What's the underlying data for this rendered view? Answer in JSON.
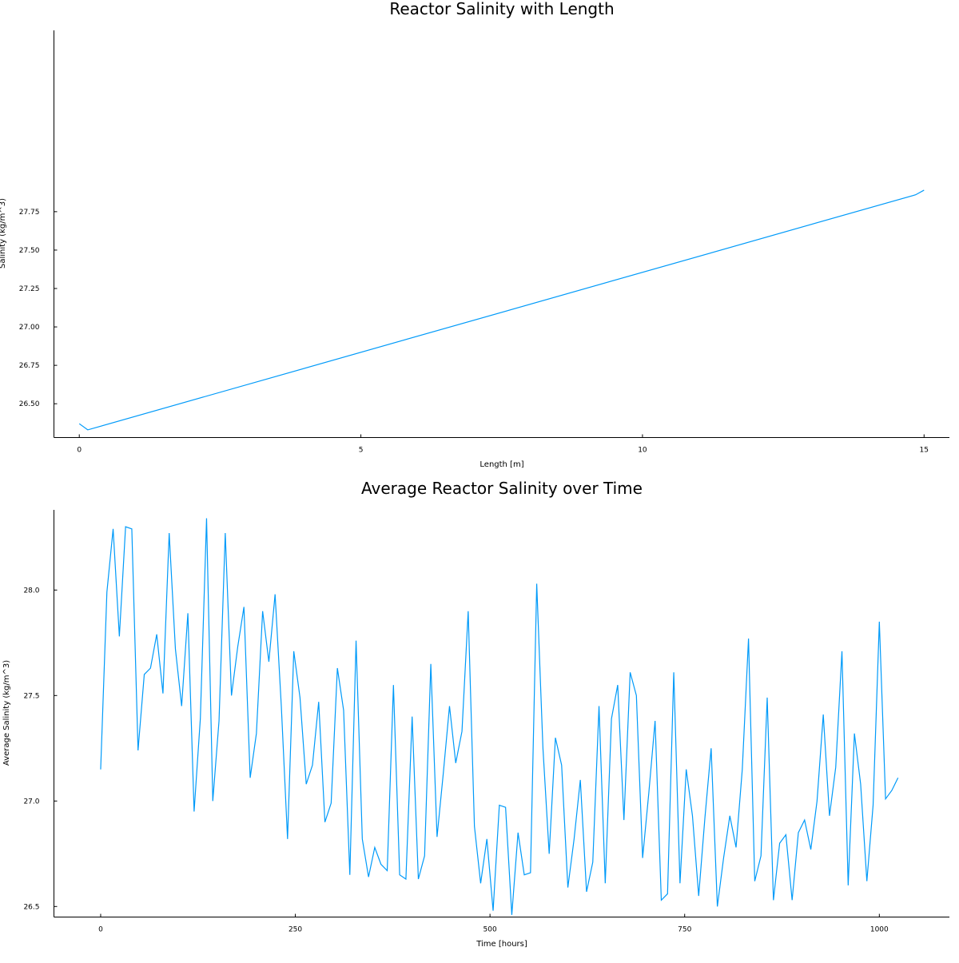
{
  "accent_color": "#009af9",
  "chart_data": [
    {
      "type": "line",
      "title": "Reactor Salinity with Length",
      "xlabel": "Length [m]",
      "ylabel": "Salinity (kg/m^3)",
      "xlim": [
        -0.45,
        15.45
      ],
      "ylim": [
        26.28,
        28.93
      ],
      "xticks": [
        0,
        5,
        10,
        15
      ],
      "xtick_labels": [
        "0",
        "5",
        "10",
        "15"
      ],
      "yticks": [
        26.5,
        26.75,
        27.0,
        27.25,
        27.5,
        27.75
      ],
      "ytick_labels": [
        "26.50",
        "26.75",
        "27.00",
        "27.25",
        "27.50",
        "27.75"
      ],
      "grid": false,
      "legend": "none",
      "series": [
        {
          "x": [
            0,
            0.15,
            14.85,
            15
          ],
          "y": [
            26.37,
            26.33,
            27.86,
            27.89
          ]
        }
      ]
    },
    {
      "type": "line",
      "title": "Average Reactor Salinity over Time",
      "xlabel": "Time [hours]",
      "ylabel": "Average Salinity (kg/m^3)",
      "xlim": [
        -60,
        1090
      ],
      "ylim": [
        26.45,
        28.38
      ],
      "xticks": [
        0,
        250,
        500,
        750,
        1000
      ],
      "xtick_labels": [
        "0",
        "250",
        "500",
        "750",
        "1000"
      ],
      "yticks": [
        26.5,
        27.0,
        27.5,
        28.0
      ],
      "ytick_labels": [
        "26.5",
        "27.0",
        "27.5",
        "28.0"
      ],
      "grid": false,
      "legend": "none",
      "series": [
        {
          "x": [
            0,
            8,
            16,
            24,
            32,
            40,
            48,
            56,
            64,
            72,
            80,
            88,
            96,
            104,
            112,
            120,
            128,
            136,
            144,
            152,
            160,
            168,
            176,
            184,
            192,
            200,
            208,
            216,
            224,
            232,
            240,
            248,
            256,
            264,
            272,
            280,
            288,
            296,
            304,
            312,
            320,
            328,
            336,
            344,
            352,
            360,
            368,
            376,
            384,
            392,
            400,
            408,
            416,
            424,
            432,
            440,
            448,
            456,
            464,
            472,
            480,
            488,
            496,
            504,
            512,
            520,
            528,
            536,
            544,
            552,
            560,
            568,
            576,
            584,
            592,
            600,
            608,
            616,
            624,
            632,
            640,
            648,
            656,
            664,
            672,
            680,
            688,
            696,
            704,
            712,
            720,
            728,
            736,
            744,
            752,
            760,
            768,
            776,
            784,
            792,
            800,
            808,
            816,
            824,
            832,
            840,
            848,
            856,
            864,
            872,
            880,
            888,
            896,
            904,
            912,
            920,
            928,
            936,
            944,
            952,
            960,
            968,
            976,
            984,
            992,
            1000,
            1008,
            1016,
            1024
          ],
          "y": [
            27.15,
            27.99,
            28.29,
            27.78,
            28.3,
            28.29,
            27.24,
            27.6,
            27.63,
            27.79,
            27.51,
            28.27,
            27.72,
            27.45,
            27.89,
            26.95,
            27.39,
            28.34,
            27.0,
            27.38,
            28.27,
            27.5,
            27.73,
            27.92,
            27.11,
            27.32,
            27.9,
            27.66,
            27.98,
            27.45,
            26.82,
            27.71,
            27.49,
            27.08,
            27.17,
            27.47,
            26.9,
            26.99,
            27.63,
            27.43,
            26.65,
            27.76,
            26.82,
            26.64,
            26.78,
            26.7,
            26.67,
            27.55,
            26.65,
            26.63,
            27.4,
            26.63,
            26.74,
            27.65,
            26.83,
            27.13,
            27.45,
            27.18,
            27.33,
            27.9,
            26.88,
            26.61,
            26.82,
            26.48,
            26.98,
            26.97,
            26.46,
            26.85,
            26.65,
            26.66,
            28.03,
            27.25,
            26.75,
            27.3,
            27.17,
            26.59,
            26.82,
            27.1,
            26.57,
            26.71,
            27.45,
            26.61,
            27.39,
            27.55,
            26.91,
            27.61,
            27.5,
            26.73,
            27.04,
            27.38,
            26.53,
            26.56,
            27.61,
            26.61,
            27.15,
            26.93,
            26.55,
            26.92,
            27.25,
            26.5,
            26.73,
            26.93,
            26.78,
            27.15,
            27.77,
            26.62,
            26.74,
            27.49,
            26.53,
            26.8,
            26.84,
            26.53,
            26.85,
            26.91,
            26.77,
            27.0,
            27.41,
            26.93,
            27.16,
            27.71,
            26.6,
            27.32,
            27.08,
            26.62,
            26.98,
            27.85,
            27.01,
            27.05,
            27.11
          ]
        }
      ]
    }
  ]
}
